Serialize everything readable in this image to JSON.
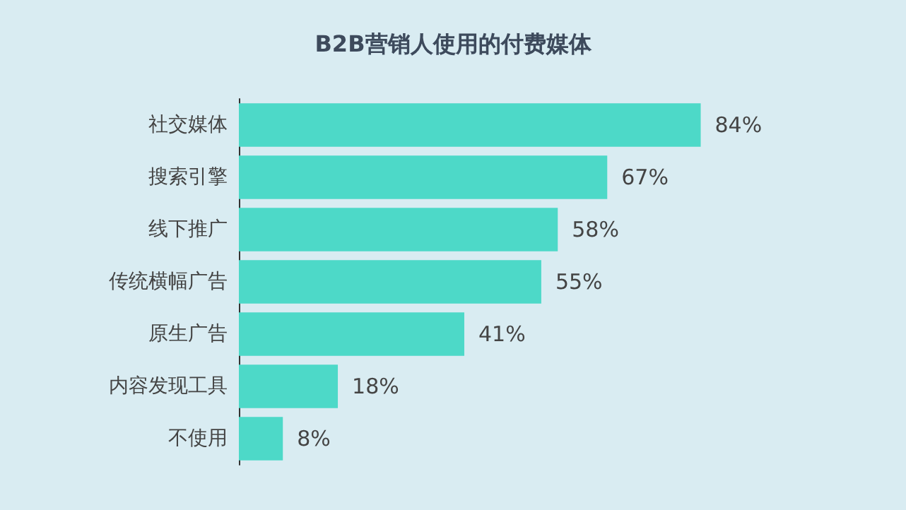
{
  "chart_data": {
    "type": "bar",
    "orientation": "horizontal",
    "title": "B2B营销人使用的付费媒体",
    "categories": [
      "社交媒体",
      "搜索引擎",
      "线下推广",
      "传统横幅广告",
      "原生广告",
      "内容发现工具",
      "不使用"
    ],
    "values": [
      84,
      67,
      58,
      55,
      41,
      18,
      8
    ],
    "value_labels": [
      "84%",
      "67%",
      "58%",
      "55%",
      "41%",
      "18%",
      "8%"
    ],
    "color": "#4dd9c8",
    "grid": false
  }
}
